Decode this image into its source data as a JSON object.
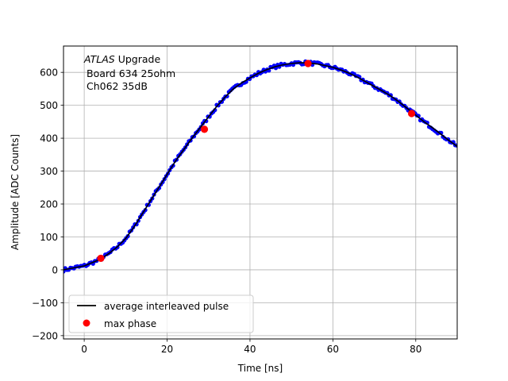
{
  "chart_data": {
    "type": "scatter",
    "xlabel": "Time [ns]",
    "ylabel": "Amplitude [ADC Counts]",
    "xlim": [
      -5,
      90
    ],
    "ylim": [
      -210,
      680
    ],
    "xticks": [
      0,
      20,
      40,
      60,
      80
    ],
    "yticks": [
      -200,
      -100,
      0,
      100,
      200,
      300,
      400,
      500,
      600
    ],
    "xtick_labels": [
      "0",
      "20",
      "40",
      "60",
      "80"
    ],
    "ytick_labels": [
      "−200",
      "−100",
      "0",
      "100",
      "200",
      "300",
      "400",
      "500",
      "600"
    ],
    "grid": true,
    "legend_position": "lower-left",
    "annotation": {
      "line1_italic": "ATLAS",
      "line1_rest": " Upgrade",
      "line2": "Board 634 25ohm",
      "line3": "Ch062 35dB"
    },
    "series": [
      {
        "name": "average interleaved pulse",
        "kind": "line",
        "color": "#000000",
        "x": [
          -5,
          0,
          2,
          4,
          6,
          8,
          10,
          12,
          14,
          16,
          18,
          20,
          22,
          24,
          26,
          28,
          30,
          32,
          34,
          36,
          38,
          40,
          42,
          44,
          46,
          48,
          50,
          52,
          54,
          56,
          58,
          60,
          62,
          64,
          66,
          68,
          70,
          72,
          74,
          76,
          78,
          80,
          82,
          84,
          86,
          88,
          90
        ],
        "y": [
          0,
          12,
          22,
          33,
          50,
          70,
          95,
          130,
          170,
          210,
          250,
          290,
          330,
          365,
          400,
          432,
          465,
          497,
          525,
          550,
          568,
          583,
          597,
          608,
          617,
          623,
          627,
          629,
          629,
          626,
          621,
          615,
          607,
          597,
          585,
          571,
          557,
          543,
          528,
          510,
          490,
          470,
          450,
          432,
          413,
          393,
          375
        ]
      },
      {
        "name": "",
        "kind": "scatter",
        "color": "#0000ff",
        "note_samples": "samples"
      },
      {
        "name": "max phase",
        "kind": "scatter",
        "color": "#ff0000",
        "x": [
          4,
          29,
          54,
          79
        ],
        "y": [
          35,
          427,
          627,
          475
        ]
      }
    ]
  }
}
